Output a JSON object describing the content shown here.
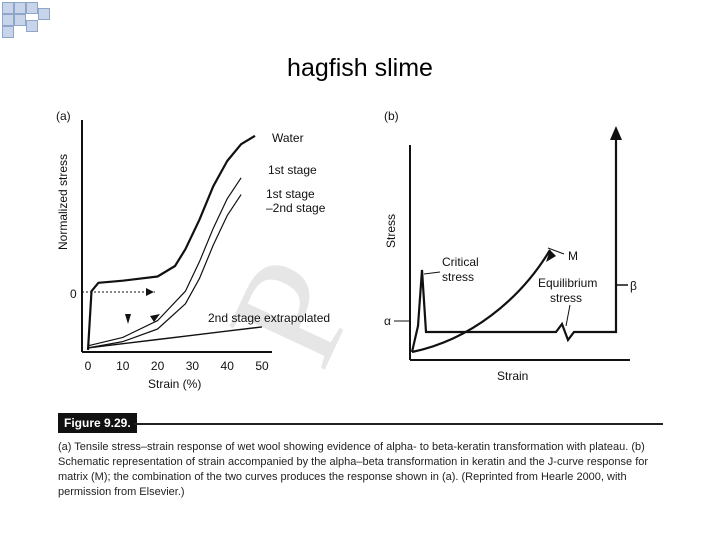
{
  "slide": {
    "title": "hagfish slime"
  },
  "figure": {
    "label": "Figure 9.29.",
    "caption": "(a) Tensile stress–strain response of wet wool showing evidence of alpha- to beta-keratin transformation with plateau. (b) Schematic representation of strain accompanied by the alpha–beta transformation in keratin and the J-curve response for matrix (M); the combination of the two curves produces the response shown in (a). (Reprinted from Hearle 2000, with permission from Elsevier.)"
  },
  "chart_data": [
    {
      "panel": "(a)",
      "type": "line",
      "xlabel": "Strain (%)",
      "ylabel": "Normalized stress",
      "x_ticks": [
        0,
        10,
        20,
        30,
        40,
        50
      ],
      "y_ticks_labels": [
        "0"
      ],
      "xlim": [
        0,
        50
      ],
      "ylim": [
        0,
        1
      ],
      "series": [
        {
          "name": "Water",
          "x": [
            0,
            1,
            3,
            10,
            20,
            25,
            28,
            32,
            36,
            40,
            44,
            48
          ],
          "y": [
            0,
            0.28,
            0.32,
            0.33,
            0.35,
            0.4,
            0.48,
            0.62,
            0.78,
            0.9,
            0.98,
            1.02
          ]
        },
        {
          "name": "1st stage",
          "x": [
            0,
            10,
            20,
            28,
            32,
            36,
            40,
            44
          ],
          "y": [
            0.02,
            0.06,
            0.14,
            0.28,
            0.42,
            0.58,
            0.72,
            0.82
          ]
        },
        {
          "name": "1st stage –2nd stage",
          "x": [
            0,
            10,
            20,
            28,
            32,
            36,
            40,
            44
          ],
          "y": [
            0.01,
            0.04,
            0.1,
            0.22,
            0.34,
            0.5,
            0.64,
            0.74
          ]
        },
        {
          "name": "2nd stage extrapolated",
          "x": [
            0,
            10,
            20,
            30,
            40,
            50
          ],
          "y": [
            0.01,
            0.03,
            0.05,
            0.07,
            0.09,
            0.11
          ]
        }
      ]
    },
    {
      "panel": "(b)",
      "type": "line",
      "xlabel": "Strain",
      "ylabel": "Stress",
      "annotations": [
        "Critical stress",
        "M",
        "Equilibrium stress",
        "α",
        "β"
      ]
    }
  ]
}
